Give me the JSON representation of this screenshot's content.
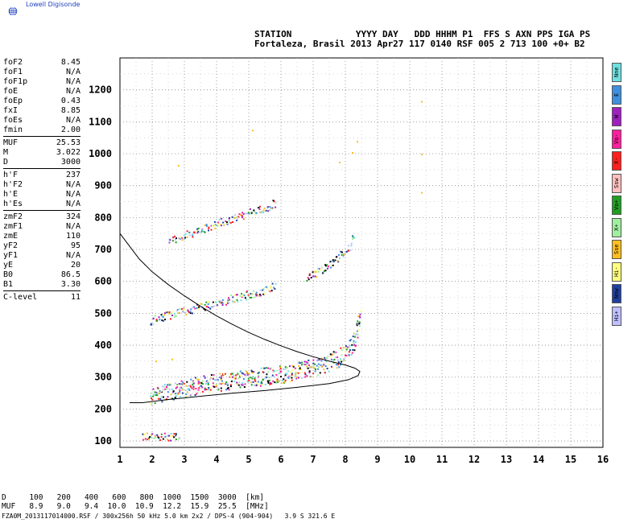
{
  "brand": {
    "name": "Lowell Digisonde"
  },
  "header": {
    "line1": "STATION            YYYY DAY   DDD HHHM P1  FFS S AXN PPS IGA PS",
    "line2": "Fortaleza, Brasil 2013 Apr27 117 0140 RSF 005 2 713 100 +0+ B2"
  },
  "params": {
    "group1": [
      {
        "k": "foF2",
        "v": "8.45"
      },
      {
        "k": "foF1",
        "v": "N/A"
      },
      {
        "k": "foF1p",
        "v": "N/A"
      },
      {
        "k": "foE",
        "v": "N/A"
      },
      {
        "k": "foEp",
        "v": "0.43"
      },
      {
        "k": "fxI",
        "v": "8.85"
      },
      {
        "k": "foEs",
        "v": "N/A"
      },
      {
        "k": "fmin",
        "v": "2.00"
      }
    ],
    "group2": [
      {
        "k": "MUF",
        "v": "25.53"
      },
      {
        "k": "M",
        "v": "3.022"
      },
      {
        "k": "D",
        "v": "3000"
      }
    ],
    "group3": [
      {
        "k": "h'F",
        "v": "237"
      },
      {
        "k": "h'F2",
        "v": "N/A"
      },
      {
        "k": "h'E",
        "v": "N/A"
      },
      {
        "k": "h'Es",
        "v": "N/A"
      }
    ],
    "group4": [
      {
        "k": "zmF2",
        "v": "324"
      },
      {
        "k": "zmF1",
        "v": "N/A"
      },
      {
        "k": "zmE",
        "v": "110"
      },
      {
        "k": "yF2",
        "v": "95"
      },
      {
        "k": "yF1",
        "v": "N/A"
      },
      {
        "k": "yE",
        "v": "20"
      },
      {
        "k": "B0",
        "v": "86.5"
      },
      {
        "k": "B1",
        "v": "3.30"
      }
    ],
    "group5": [
      {
        "k": "C-level",
        "v": "11"
      }
    ]
  },
  "legend": [
    {
      "label": "Nne",
      "color": "#6fe0e0"
    },
    {
      "label": "E",
      "color": "#3f8fe0"
    },
    {
      "label": "W",
      "color": "#9f1fbf"
    },
    {
      "label": "Vo-",
      "color": "#ff1f9f"
    },
    {
      "label": "X-",
      "color": "#ff1f1f"
    },
    {
      "label": "Ssw",
      "color": "#ffbfbf"
    },
    {
      "label": "Vo+",
      "color": "#1f9f1f"
    },
    {
      "label": "X+",
      "color": "#9fef9f"
    },
    {
      "label": "Sse",
      "color": "#ffbf1f"
    },
    {
      "label": "Hi-",
      "color": "#ffff7f"
    },
    {
      "label": "Nnw",
      "color": "#1f3f9f"
    },
    {
      "label": "Hi+",
      "color": "#bfbfff"
    }
  ],
  "bottom": {
    "line1": "D     100   200   400   600   800  1000  1500  3000  [km]",
    "line2": "MUF   8.9   9.0   9.4  10.0  10.9  12.2  15.9  25.5  [MHz]",
    "line3": "FZA0M_2013117014000.RSF / 300x256h 50 kHz 5.0 km 2x2 / DPS-4 (904-904)   3.9 S 321.6 E"
  },
  "chart_data": {
    "type": "scatter",
    "xlim": [
      1,
      16
    ],
    "ylim": [
      80,
      1300
    ],
    "x_ticks": [
      1,
      2,
      3,
      4,
      5,
      6,
      7,
      8,
      9,
      10,
      11,
      12,
      13,
      14,
      15,
      16
    ],
    "y_ticks": [
      100,
      200,
      300,
      400,
      500,
      600,
      700,
      800,
      900,
      1000,
      1100,
      1200
    ],
    "grid": true,
    "traces": [
      {
        "name": "F2 virtual height trace",
        "points": [
          [
            1.95,
            240
          ],
          [
            2.2,
            248
          ],
          [
            2.5,
            255
          ],
          [
            2.8,
            262
          ],
          [
            3.2,
            270
          ],
          [
            3.6,
            278
          ],
          [
            4,
            285
          ],
          [
            4.5,
            292
          ],
          [
            5,
            298
          ],
          [
            5.5,
            304
          ],
          [
            6,
            310
          ],
          [
            6.5,
            320
          ],
          [
            7,
            332
          ],
          [
            7.4,
            345
          ],
          [
            7.8,
            362
          ],
          [
            8.05,
            380
          ],
          [
            8.2,
            400
          ],
          [
            8.3,
            425
          ],
          [
            8.38,
            455
          ],
          [
            8.45,
            500
          ]
        ]
      },
      {
        "name": "2nd hop",
        "points": [
          [
            1.95,
            478
          ],
          [
            2.5,
            495
          ],
          [
            3,
            508
          ],
          [
            3.5,
            520
          ],
          [
            4,
            535
          ],
          [
            4.5,
            548
          ],
          [
            5,
            560
          ],
          [
            5.5,
            575
          ],
          [
            5.85,
            590
          ]
        ]
      },
      {
        "name": "3rd hop",
        "points": [
          [
            2.5,
            728
          ],
          [
            3,
            745
          ],
          [
            3.5,
            765
          ],
          [
            4,
            782
          ],
          [
            4.5,
            798
          ],
          [
            5,
            815
          ],
          [
            5.5,
            830
          ],
          [
            5.85,
            850
          ]
        ]
      },
      {
        "name": "multi-hop 2",
        "points": [
          [
            6.8,
            610
          ],
          [
            7.3,
            640
          ],
          [
            7.8,
            680
          ],
          [
            8.1,
            710
          ],
          [
            8.3,
            760
          ]
        ]
      },
      {
        "name": "E layer",
        "points": [
          [
            1.7,
            115
          ],
          [
            2.0,
            115
          ],
          [
            2.3,
            115
          ],
          [
            2.6,
            114
          ],
          [
            2.85,
            115
          ]
        ]
      }
    ],
    "profile": [
      [
        1.0,
        750
      ],
      [
        1.3,
        710
      ],
      [
        1.6,
        670
      ],
      [
        2,
        630
      ],
      [
        2.5,
        590
      ],
      [
        3,
        555
      ],
      [
        3.5,
        522
      ],
      [
        4,
        492
      ],
      [
        4.5,
        465
      ],
      [
        5,
        440
      ],
      [
        5.5,
        418
      ],
      [
        6,
        398
      ],
      [
        6.5,
        380
      ],
      [
        7,
        364
      ],
      [
        7.5,
        350
      ],
      [
        8,
        338
      ],
      [
        8.3,
        328
      ],
      [
        8.45,
        318
      ],
      [
        8.4,
        305
      ],
      [
        8.1,
        292
      ],
      [
        7.5,
        280
      ],
      [
        6.5,
        268
      ],
      [
        5.5,
        258
      ],
      [
        4.5,
        250
      ],
      [
        3.5,
        240
      ],
      [
        2.5,
        230
      ],
      [
        1.7,
        220
      ],
      [
        1.3,
        220
      ]
    ],
    "scatter_points": [
      [
        2.8,
        965
      ],
      [
        5.1,
        1075
      ],
      [
        7.8,
        975
      ],
      [
        8.2,
        1005
      ],
      [
        8.35,
        1040
      ],
      [
        10.35,
        1165
      ],
      [
        10.35,
        880
      ],
      [
        10.35,
        1000
      ],
      [
        2.1,
        352
      ],
      [
        2.6,
        358
      ]
    ]
  }
}
